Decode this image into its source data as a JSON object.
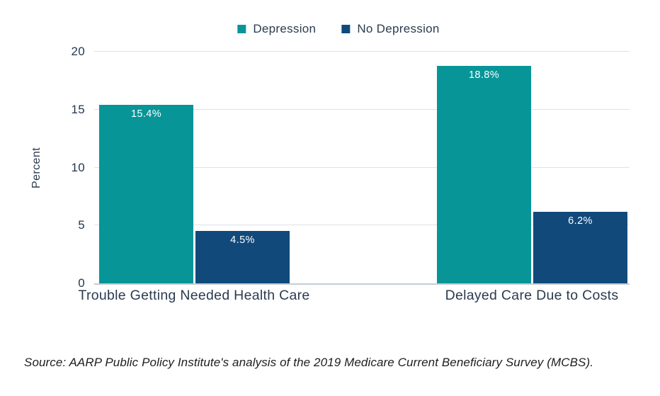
{
  "legend": [
    {
      "label": "Depression",
      "color": "#079598"
    },
    {
      "label": "No Depression",
      "color": "#11497B"
    }
  ],
  "chart_data": {
    "type": "bar",
    "categories": [
      "Trouble Getting Needed Health Care",
      "Delayed Care Due to Costs"
    ],
    "series": [
      {
        "name": "Depression",
        "color": "#079598",
        "values": [
          15.4,
          18.8
        ],
        "labels": [
          "15.4%",
          "18.8%"
        ]
      },
      {
        "name": "No Depression",
        "color": "#11497B",
        "values": [
          4.5,
          6.2
        ],
        "labels": [
          "4.5%",
          "6.2%"
        ]
      }
    ],
    "title": "",
    "xlabel": "",
    "ylabel": "Percent",
    "ylim": [
      0,
      20
    ],
    "yticks": [
      0,
      5,
      10,
      15,
      20
    ],
    "grid": "horizontal",
    "legend_position": "top-center"
  },
  "source": "Source: AARP Public Policy Institute's analysis of the 2019 Medicare Current Beneficiary Survey (MCBS)."
}
